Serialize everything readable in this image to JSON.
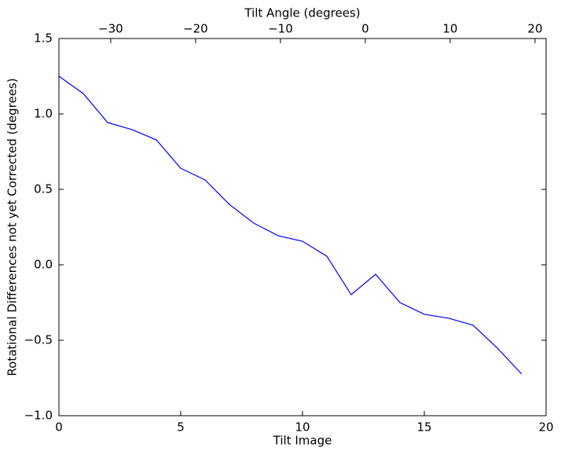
{
  "chart_data": {
    "type": "line",
    "xlabel": "Tilt Image",
    "ylabel": "Rotational Differences not yet Corrected (degrees)",
    "x2label": "Tilt Angle (degrees)",
    "x": [
      0,
      1,
      2,
      3,
      4,
      5,
      6,
      7,
      8,
      9,
      10,
      11,
      12,
      13,
      14,
      15,
      16,
      17,
      18,
      19
    ],
    "values": [
      1.25,
      1.135,
      0.943,
      0.896,
      0.828,
      0.64,
      0.5625,
      0.4,
      0.276,
      0.193,
      0.156,
      0.057,
      -0.198,
      -0.0625,
      -0.25,
      -0.328,
      -0.354,
      -0.4,
      -0.552,
      -0.724
    ],
    "color": "#0000ff",
    "xlim": [
      0,
      20
    ],
    "xticks": [
      0,
      5,
      10,
      15,
      20
    ],
    "ylim": [
      -1.0,
      1.5
    ],
    "yticks": [
      {
        "value": -1.0,
        "label": "−1.0"
      },
      {
        "value": -0.5,
        "label": "−0.5"
      },
      {
        "value": 0,
        "label": "0.0"
      },
      {
        "value": 0.5,
        "label": "0.5"
      },
      {
        "value": 1.0,
        "label": "1.0"
      },
      {
        "value": 1.5,
        "label": "1.5"
      }
    ],
    "x2lim": [
      -36.1,
      21.3
    ],
    "x2ticks": [
      {
        "value": -30,
        "label": "−30"
      },
      {
        "value": -20,
        "label": "−20"
      },
      {
        "value": -10,
        "label": "−10"
      },
      0,
      10,
      20
    ],
    "grid": false
  }
}
